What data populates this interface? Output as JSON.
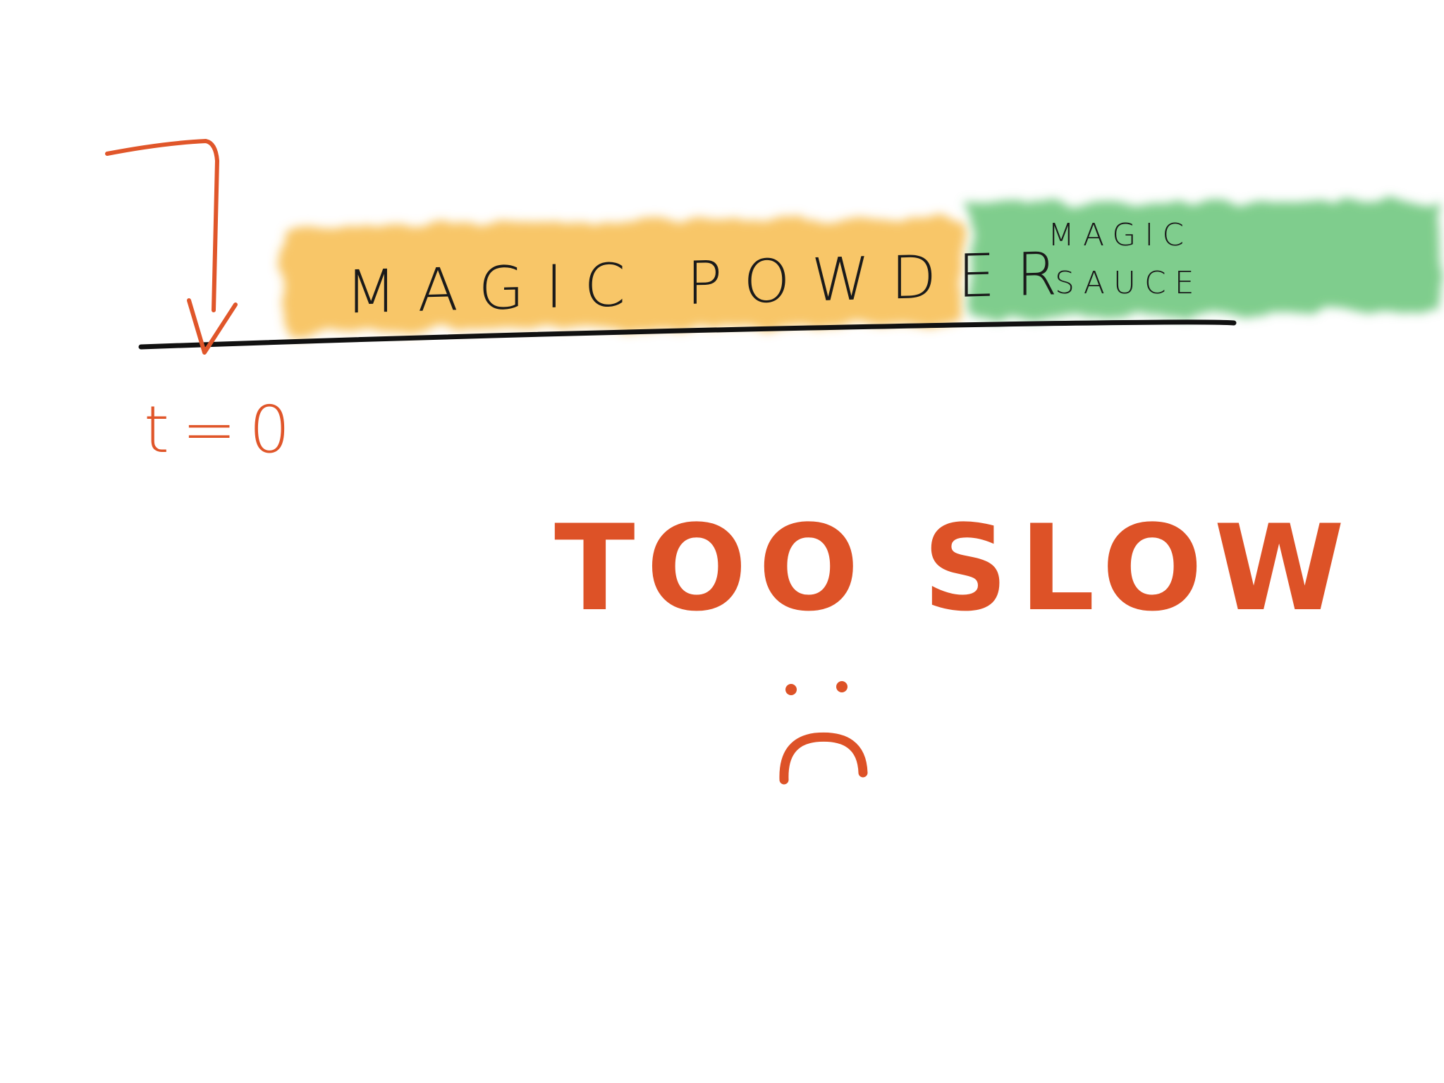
{
  "diagram": {
    "segments": [
      {
        "label": "MAGIC POWDER",
        "color": "#f6b947"
      },
      {
        "label_lines": [
          "MAGIC",
          "SAUCE"
        ],
        "color": "#5cbf6c"
      }
    ],
    "timeline_color": "#111111",
    "marker": {
      "label": "t=0",
      "color": "#e0562a"
    },
    "verdict": {
      "text": "TOO SLOW",
      "color": "#dd5227"
    },
    "face": {
      "icon": "sad-face-icon",
      "color": "#dd5227"
    }
  }
}
